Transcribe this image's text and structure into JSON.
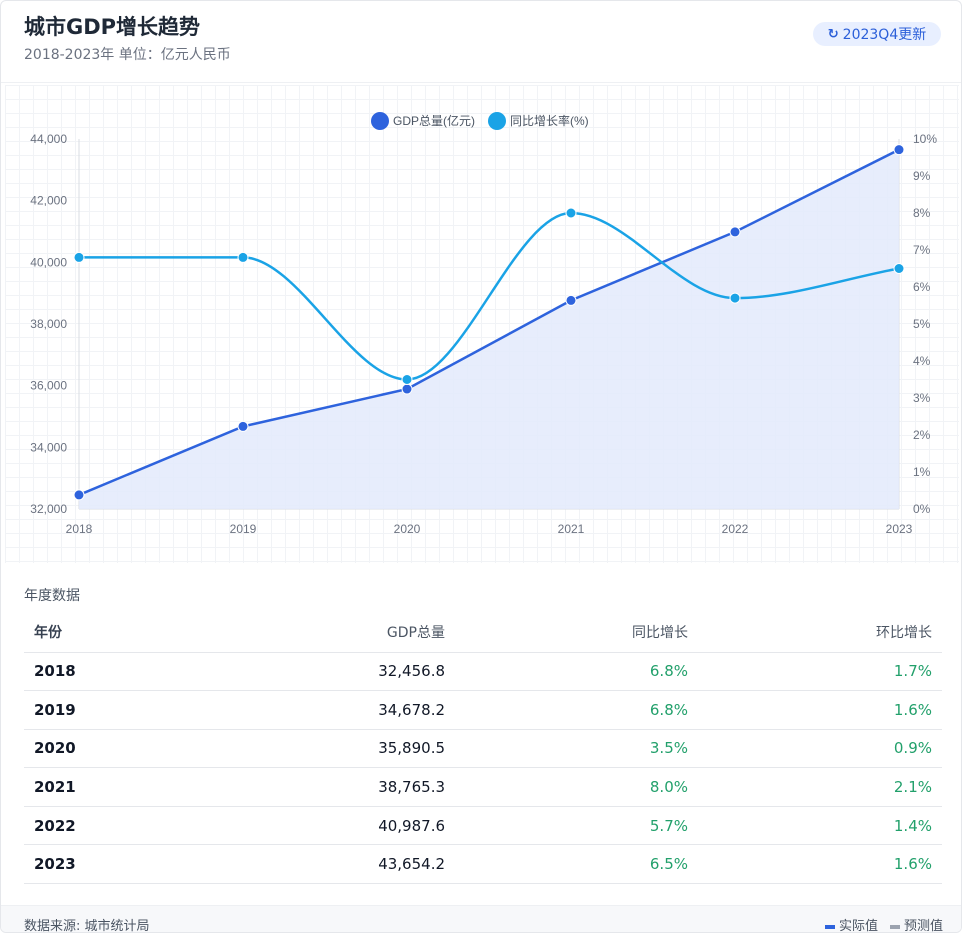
{
  "header": {
    "title": "城市GDP增长趋势",
    "subtitle": "2018-2023年 单位：亿元人民币",
    "update_label": "2023Q4更新",
    "update_icon": "refresh-icon"
  },
  "colors": {
    "gdp": "#2e63dd",
    "yoy": "#1aa3e6",
    "area_fill": "#e3eafb",
    "positive": "#22a06b",
    "forecast": "#9ca3af"
  },
  "chart_data": {
    "type": "line",
    "categories": [
      "2018",
      "2019",
      "2020",
      "2021",
      "2022",
      "2023"
    ],
    "series": [
      {
        "name": "GDP总量(亿元)",
        "axis": "left",
        "style": "line+area",
        "values": [
          32456.8,
          34678.2,
          35890.5,
          38765.3,
          40987.6,
          43654.2
        ]
      },
      {
        "name": "同比增长率(%)",
        "axis": "right",
        "style": "smooth-line",
        "values": [
          6.8,
          6.8,
          3.5,
          8.0,
          5.7,
          6.5
        ]
      }
    ],
    "y_left": {
      "min": 32000,
      "max": 44000,
      "ticks": [
        "32,000",
        "34,000",
        "36,000",
        "38,000",
        "40,000",
        "42,000",
        "44,000"
      ]
    },
    "y_right": {
      "min": 0,
      "max": 10,
      "ticks": [
        "0%",
        "1%",
        "2%",
        "3%",
        "4%",
        "5%",
        "6%",
        "7%",
        "8%",
        "9%",
        "10%"
      ]
    },
    "legend_position": "top-center",
    "grid": true
  },
  "table": {
    "section_label": "年度数据",
    "headers": [
      "年份",
      "GDP总量",
      "同比增长",
      "环比增长"
    ],
    "rows": [
      {
        "year": "2018",
        "gdp": "32,456.8",
        "yoy": "6.8%",
        "qoq": "1.7%"
      },
      {
        "year": "2019",
        "gdp": "34,678.2",
        "yoy": "6.8%",
        "qoq": "1.6%"
      },
      {
        "year": "2020",
        "gdp": "35,890.5",
        "yoy": "3.5%",
        "qoq": "0.9%"
      },
      {
        "year": "2021",
        "gdp": "38,765.3",
        "yoy": "8.0%",
        "qoq": "2.1%"
      },
      {
        "year": "2022",
        "gdp": "40,987.6",
        "yoy": "5.7%",
        "qoq": "1.4%"
      },
      {
        "year": "2023",
        "gdp": "43,654.2",
        "yoy": "6.5%",
        "qoq": "1.6%"
      }
    ]
  },
  "footer": {
    "source": "数据来源: 城市统计局",
    "legend_actual": "实际值",
    "legend_forecast": "预测值"
  }
}
